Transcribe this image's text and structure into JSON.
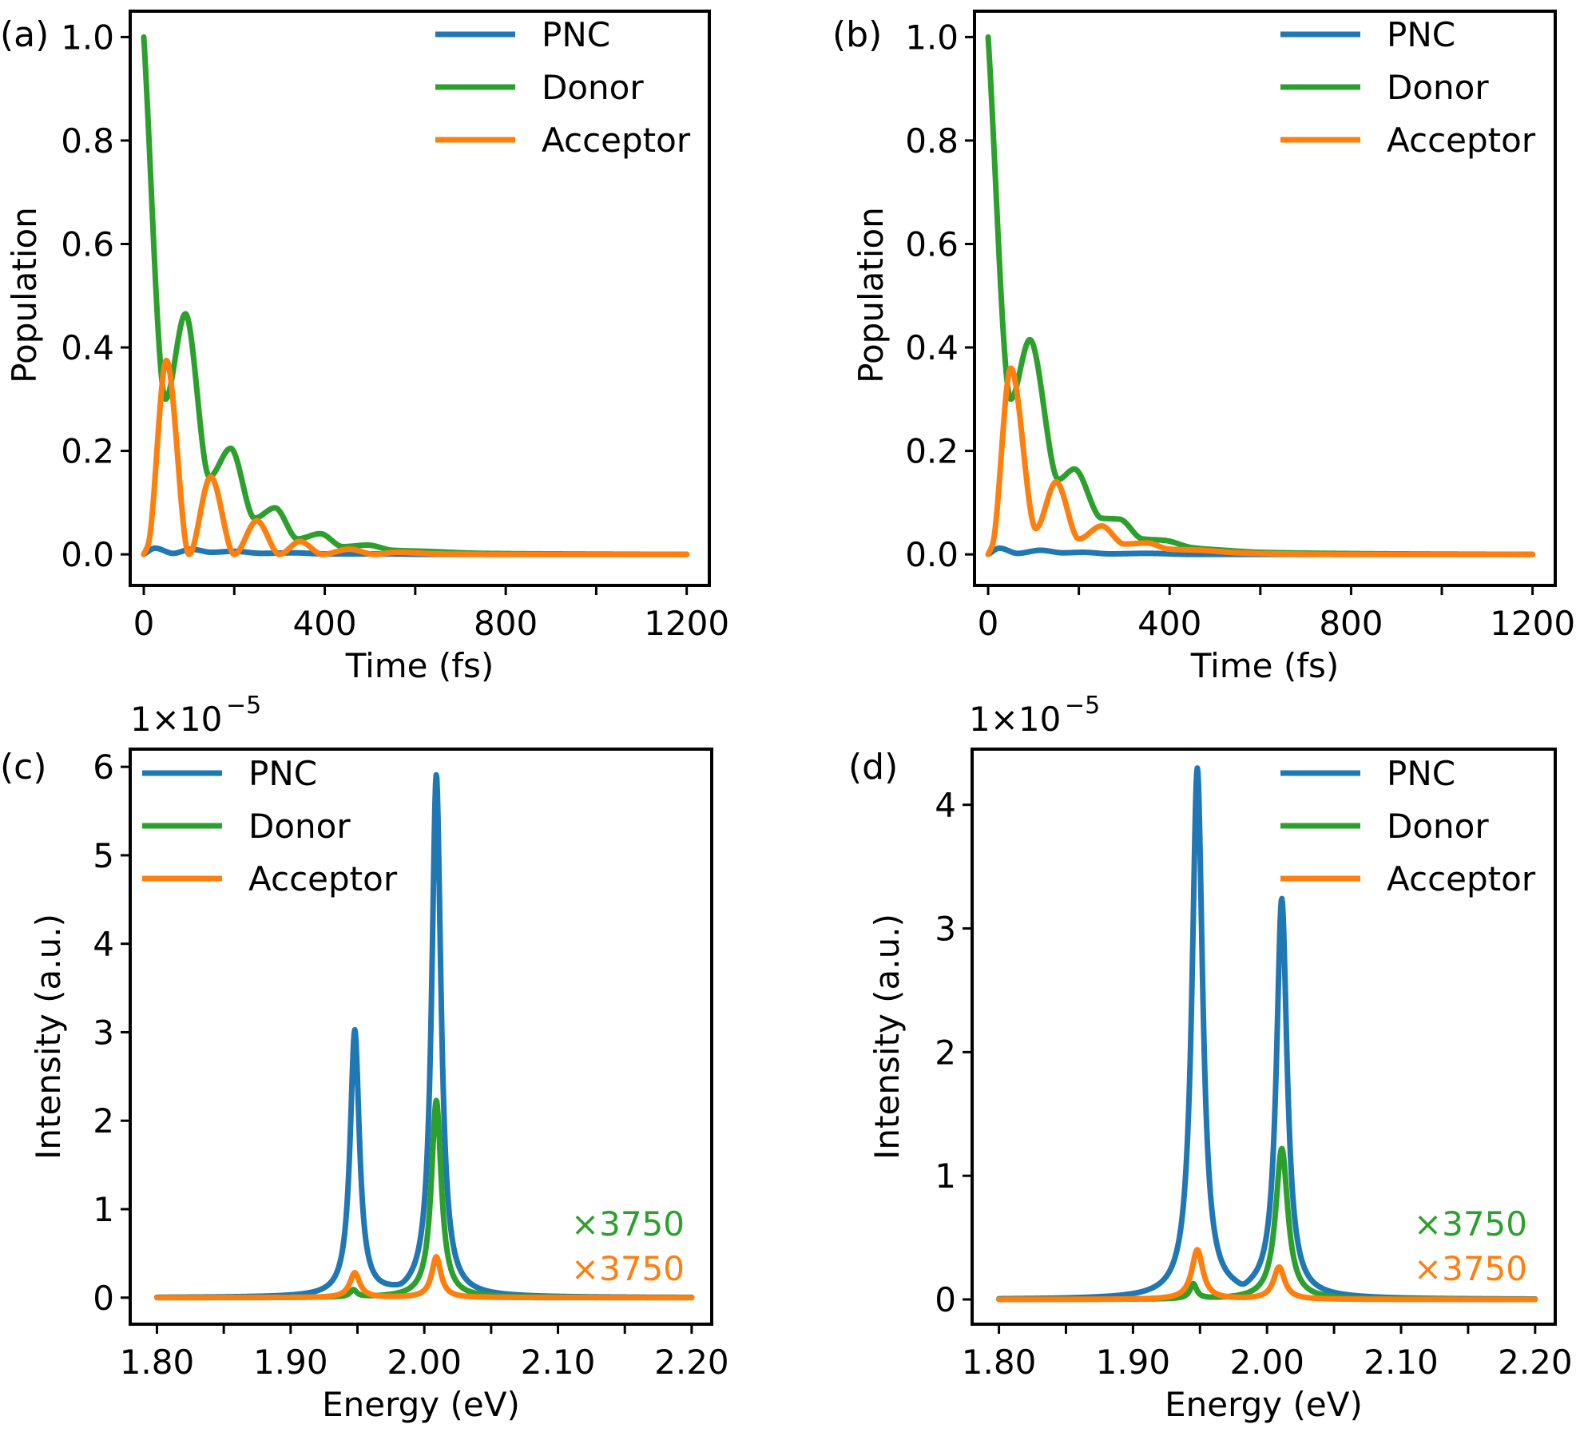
{
  "colors": {
    "PNC": "#1f77b4",
    "Donor": "#2ca02c",
    "Acceptor": "#ff7f0e"
  },
  "chart_data": [
    {
      "id": "a",
      "panel_label": "(a)",
      "type": "line",
      "xlabel": "Time (fs)",
      "ylabel": "Population",
      "xlim": [
        -30,
        1250
      ],
      "ylim": [
        -0.06,
        1.05
      ],
      "xticks": [
        0,
        400,
        800,
        1200
      ],
      "xticks_minor": [
        200,
        600,
        1000
      ],
      "xtick_labels": [
        "0",
        "400",
        "800",
        "1200"
      ],
      "yticks": [
        0.0,
        0.2,
        0.4,
        0.6,
        0.8,
        1.0
      ],
      "ytick_labels": [
        "0.0",
        "0.2",
        "0.4",
        "0.6",
        "0.8",
        "1.0"
      ],
      "legend": {
        "placement": "top-right",
        "entries": [
          "PNC",
          "Donor",
          "Acceptor"
        ]
      },
      "series": [
        {
          "name": "PNC",
          "x": [
            0,
            25,
            65,
            105,
            150,
            200,
            260,
            330,
            400,
            500,
            650,
            900,
            1200
          ],
          "y": [
            0.0,
            0.012,
            0.002,
            0.01,
            0.004,
            0.006,
            0.002,
            0.003,
            0.001,
            0.001,
            0.0,
            0.0,
            0.0
          ]
        },
        {
          "name": "Donor",
          "x": [
            0,
            48,
            92,
            145,
            192,
            245,
            290,
            340,
            390,
            440,
            495,
            550,
            620,
            750,
            900,
            1200
          ],
          "y": [
            1.0,
            0.3,
            0.465,
            0.15,
            0.205,
            0.07,
            0.09,
            0.03,
            0.04,
            0.015,
            0.018,
            0.008,
            0.006,
            0.002,
            0.001,
            0.0
          ]
        },
        {
          "name": "Acceptor",
          "x": [
            0,
            10,
            50,
            100,
            148,
            200,
            250,
            300,
            345,
            395,
            455,
            510,
            560,
            650,
            800,
            1200
          ],
          "y": [
            0.0,
            0.02,
            0.375,
            0.0,
            0.15,
            0.0,
            0.065,
            0.0,
            0.025,
            0.0,
            0.01,
            0.0,
            0.004,
            0.001,
            0.0,
            0.0
          ]
        }
      ]
    },
    {
      "id": "b",
      "panel_label": "(b)",
      "type": "line",
      "xlabel": "Time (fs)",
      "ylabel": "Population",
      "xlim": [
        -30,
        1250
      ],
      "ylim": [
        -0.06,
        1.05
      ],
      "xticks": [
        0,
        400,
        800,
        1200
      ],
      "xticks_minor": [
        200,
        600,
        1000
      ],
      "xtick_labels": [
        "0",
        "400",
        "800",
        "1200"
      ],
      "yticks": [
        0.0,
        0.2,
        0.4,
        0.6,
        0.8,
        1.0
      ],
      "ytick_labels": [
        "0.0",
        "0.2",
        "0.4",
        "0.6",
        "0.8",
        "1.0"
      ],
      "legend": {
        "placement": "top-right",
        "entries": [
          "PNC",
          "Donor",
          "Acceptor"
        ]
      },
      "series": [
        {
          "name": "PNC",
          "x": [
            0,
            25,
            65,
            115,
            165,
            210,
            270,
            350,
            450,
            600,
            900,
            1200
          ],
          "y": [
            0.0,
            0.012,
            0.002,
            0.008,
            0.003,
            0.004,
            0.001,
            0.002,
            0.0,
            0.0,
            0.0,
            0.0
          ]
        },
        {
          "name": "Donor",
          "x": [
            0,
            50,
            92,
            155,
            190,
            250,
            290,
            340,
            390,
            450,
            520,
            600,
            750,
            900,
            1200
          ],
          "y": [
            1.0,
            0.3,
            0.415,
            0.145,
            0.165,
            0.07,
            0.068,
            0.03,
            0.027,
            0.013,
            0.008,
            0.004,
            0.002,
            0.001,
            0.0
          ]
        },
        {
          "name": "Acceptor",
          "x": [
            0,
            10,
            50,
            105,
            150,
            200,
            250,
            300,
            350,
            400,
            470,
            550,
            650,
            800,
            1200
          ],
          "y": [
            0.0,
            0.02,
            0.36,
            0.05,
            0.14,
            0.03,
            0.055,
            0.02,
            0.022,
            0.01,
            0.008,
            0.003,
            0.001,
            0.0,
            0.0
          ]
        }
      ]
    },
    {
      "id": "c",
      "panel_label": "(c)",
      "type": "line",
      "xlabel": "Energy (eV)",
      "ylabel": "Intensity (a.u.)",
      "offset_text": "1×10",
      "offset_exp": "−5",
      "y_multiplier": 1e-05,
      "xlim": [
        1.78,
        2.215
      ],
      "ylim": [
        -0.3,
        6.2
      ],
      "xticks": [
        1.8,
        1.9,
        2.0,
        2.1,
        2.2
      ],
      "xticks_minor": [
        1.85,
        1.95,
        2.05,
        2.15
      ],
      "xtick_labels": [
        "1.80",
        "1.90",
        "2.00",
        "2.10",
        "2.20"
      ],
      "yticks": [
        0,
        1,
        2,
        3,
        4,
        5,
        6
      ],
      "ytick_labels": [
        "0",
        "1",
        "2",
        "3",
        "4",
        "5",
        "6"
      ],
      "legend": {
        "placement": "top-left",
        "entries": [
          "PNC",
          "Donor",
          "Acceptor"
        ]
      },
      "annotations": [
        {
          "text": "×3750",
          "series": "Donor"
        },
        {
          "text": "×3750",
          "series": "Acceptor"
        }
      ],
      "series": [
        {
          "name": "PNC",
          "peaks": [
            {
              "center": 1.948,
              "height": 3.0,
              "hwhm": 0.0042
            },
            {
              "center": 2.009,
              "height": 5.9,
              "hwhm": 0.0042
            }
          ],
          "dip": {
            "center": 1.983,
            "depth": 0.02
          }
        },
        {
          "name": "Donor",
          "scale_factor": 3750,
          "peaks": [
            {
              "center": 1.947,
              "height": 0.08,
              "hwhm": 0.003
            },
            {
              "center": 2.009,
              "height": 2.23,
              "hwhm": 0.0045
            }
          ]
        },
        {
          "name": "Acceptor",
          "scale_factor": 3750,
          "peaks": [
            {
              "center": 1.948,
              "height": 0.28,
              "hwhm": 0.0045
            },
            {
              "center": 2.009,
              "height": 0.46,
              "hwhm": 0.0042
            }
          ]
        }
      ]
    },
    {
      "id": "d",
      "panel_label": "(d)",
      "type": "line",
      "xlabel": "Energy (eV)",
      "ylabel": "Intensity (a.u.)",
      "offset_text": "1×10",
      "offset_exp": "−5",
      "y_multiplier": 1e-05,
      "xlim": [
        1.78,
        2.215
      ],
      "ylim": [
        -0.2,
        4.45
      ],
      "xticks": [
        1.8,
        1.9,
        2.0,
        2.1,
        2.2
      ],
      "xticks_minor": [
        1.85,
        1.95,
        2.05,
        2.15
      ],
      "xtick_labels": [
        "1.80",
        "1.90",
        "2.00",
        "2.10",
        "2.20"
      ],
      "yticks": [
        0,
        1,
        2,
        3,
        4
      ],
      "ytick_labels": [
        "0",
        "1",
        "2",
        "3",
        "4"
      ],
      "legend": {
        "placement": "top-right",
        "entries": [
          "PNC",
          "Donor",
          "Acceptor"
        ]
      },
      "annotations": [
        {
          "text": "×3750",
          "series": "Donor"
        },
        {
          "text": "×3750",
          "series": "Acceptor"
        }
      ],
      "series": [
        {
          "name": "PNC",
          "peaks": [
            {
              "center": 1.948,
              "height": 4.28,
              "hwhm": 0.0048
            },
            {
              "center": 2.011,
              "height": 3.22,
              "hwhm": 0.0048
            }
          ],
          "dip": {
            "center": 1.982,
            "depth": 0.03
          }
        },
        {
          "name": "Donor",
          "scale_factor": 3750,
          "peaks": [
            {
              "center": 1.945,
              "height": 0.12,
              "hwhm": 0.003
            },
            {
              "center": 2.011,
              "height": 1.22,
              "hwhm": 0.0055
            }
          ]
        },
        {
          "name": "Acceptor",
          "scale_factor": 3750,
          "peaks": [
            {
              "center": 1.948,
              "height": 0.4,
              "hwhm": 0.005
            },
            {
              "center": 2.009,
              "height": 0.26,
              "hwhm": 0.005
            }
          ]
        }
      ]
    }
  ]
}
